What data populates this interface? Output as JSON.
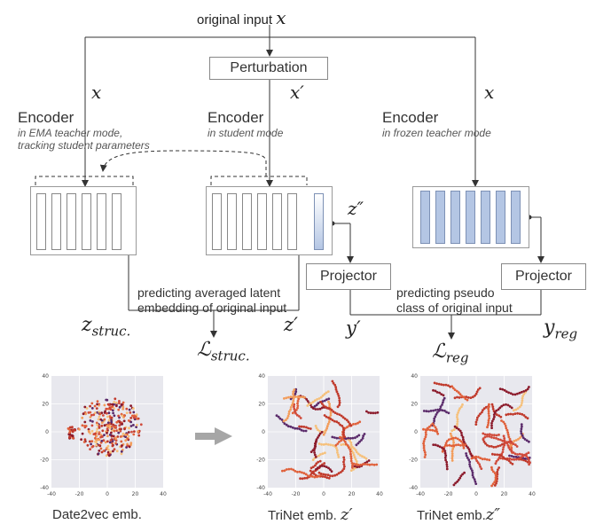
{
  "top_input": {
    "label": "original input",
    "var": "x"
  },
  "perturbation": {
    "label": "Perturbation"
  },
  "branch_vars": {
    "left": "x",
    "center": "x′",
    "right": "x"
  },
  "encoders": [
    {
      "title": "Encoder",
      "subtitle_lines": [
        "in EMA teacher mode,",
        "tracking student parameters"
      ]
    },
    {
      "title": "Encoder",
      "subtitle_lines": [
        "in student mode"
      ]
    },
    {
      "title": "Encoder",
      "subtitle_lines": [
        "in frozen teacher mode"
      ]
    }
  ],
  "z_double_prime": "z″",
  "projectors": [
    {
      "label": "Projector"
    },
    {
      "label": "Projector"
    }
  ],
  "struc_caption_lines": [
    "predicting averaged latent",
    "embedding of original input"
  ],
  "reg_caption_lines": [
    "predicting pseudo",
    "class of original input"
  ],
  "outputs": {
    "z_struc": {
      "base": "z",
      "sub": "struc."
    },
    "z_prime": "z′",
    "y_prime": "y′",
    "y_reg": {
      "base": "y",
      "sub": "reg"
    }
  },
  "losses": {
    "struc": {
      "base": "ℒ",
      "sub": "struc."
    },
    "reg": {
      "base": "ℒ",
      "sub": "reg"
    }
  },
  "plots": [
    {
      "caption": "Date2vec emb.",
      "xticks": [
        "-40",
        "-20",
        "0",
        "20",
        "40"
      ],
      "yticks": [
        "40",
        "20",
        "0",
        "-20",
        "-40"
      ]
    },
    {
      "caption_text": "TriNet emb.",
      "caption_var": "z′",
      "xticks": [
        "-40",
        "-20",
        "0",
        "20",
        "40"
      ],
      "yticks": [
        "40",
        "20",
        "0",
        "-20",
        "-40"
      ]
    },
    {
      "caption_text": "TriNet emb.",
      "caption_var": "z″",
      "xticks": [
        "-40",
        "-20",
        "0",
        "20",
        "40"
      ],
      "yticks": [
        "40",
        "20",
        "0",
        "-20",
        "-40"
      ]
    }
  ],
  "colors": {
    "line": "#333333",
    "layer_blue": "#b4c6e4",
    "plot_bg": "#e8e8ee",
    "arrow_gray": "#a6a6a6"
  }
}
